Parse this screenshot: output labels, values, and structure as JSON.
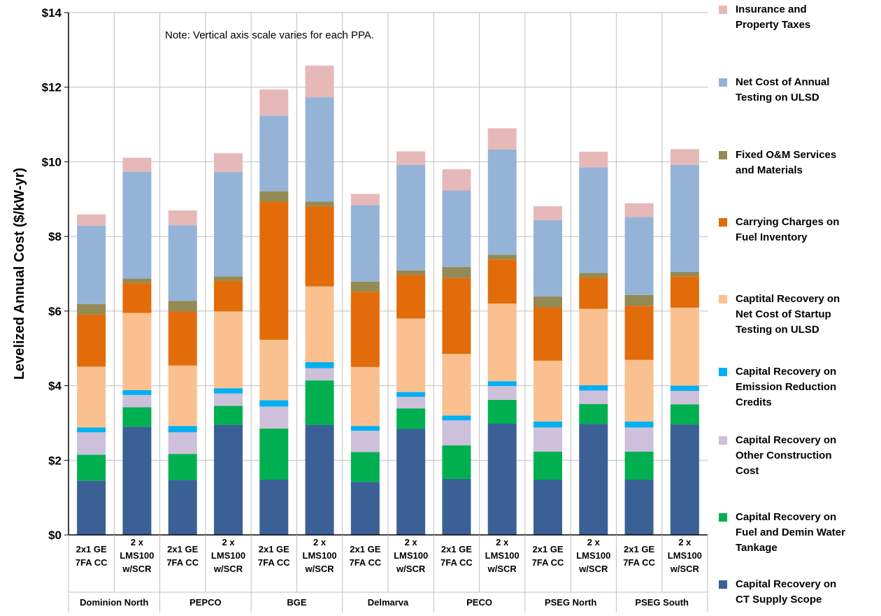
{
  "chart_data": {
    "type": "bar",
    "stacked": true,
    "note": "Note:  Vertical axis scale varies for each PPA.",
    "ylabel": "Levelized Annual Cost ($/kW-yr)",
    "xlabel": "",
    "ylim": [
      0,
      14
    ],
    "yticks": [
      0,
      2,
      4,
      6,
      8,
      10,
      12,
      14
    ],
    "ytick_labels": [
      "$0",
      "$2",
      "$4",
      "$6",
      "$8",
      "$10",
      "$12",
      "$14"
    ],
    "grid": true,
    "legend_position": "right",
    "groups": [
      "Dominion North",
      "PEPCO",
      "BGE",
      "Delmarva",
      "PECO",
      "PSEG North",
      "PSEG South"
    ],
    "category_lines": [
      [
        "2x1 GE",
        "7FA CC"
      ],
      [
        "2 x",
        "LMS100",
        "w/SCR"
      ]
    ],
    "categories": [
      "Dominion North 2x1 GE 7FA CC",
      "Dominion North 2 x LMS100 w/SCR",
      "PEPCO 2x1 GE 7FA CC",
      "PEPCO 2 x LMS100 w/SCR",
      "BGE 2x1 GE 7FA CC",
      "BGE 2 x LMS100 w/SCR",
      "Delmarva 2x1 GE 7FA CC",
      "Delmarva 2 x LMS100 w/SCR",
      "PECO 2x1 GE 7FA CC",
      "PECO 2 x LMS100 w/SCR",
      "PSEG North 2x1 GE 7FA CC",
      "PSEG North 2 x LMS100 w/SCR",
      "PSEG South 2x1 GE 7FA CC",
      "PSEG South 2 x LMS100 w/SCR"
    ],
    "series": [
      {
        "name": "Capital Recovery on CT  Supply Scope",
        "color": "#3A6095",
        "values": [
          1.45,
          2.9,
          1.47,
          2.95,
          1.48,
          2.95,
          1.42,
          2.84,
          1.5,
          2.98,
          1.48,
          2.97,
          1.48,
          2.96
        ]
      },
      {
        "name": "Capital Recovery on Fuel and Demin Water Tankage",
        "color": "#00B050",
        "values": [
          0.7,
          0.52,
          0.7,
          0.51,
          1.37,
          1.19,
          0.8,
          0.55,
          0.9,
          0.64,
          0.75,
          0.54,
          0.75,
          0.54
        ]
      },
      {
        "name": "Capital Recovery on Other Construction Cost",
        "color": "#CCC0DA",
        "values": [
          0.6,
          0.33,
          0.58,
          0.33,
          0.59,
          0.33,
          0.57,
          0.31,
          0.67,
          0.37,
          0.65,
          0.36,
          0.65,
          0.36
        ]
      },
      {
        "name": "Capital Recovery on Emission Reduction Credits",
        "color": "#00B0F0",
        "values": [
          0.13,
          0.13,
          0.17,
          0.14,
          0.17,
          0.16,
          0.13,
          0.13,
          0.13,
          0.13,
          0.16,
          0.14,
          0.16,
          0.14
        ]
      },
      {
        "name": "Captital Recovery on Net Cost of Startup Testing on ULSD",
        "color": "#FAC090",
        "values": [
          1.63,
          2.07,
          1.62,
          2.06,
          1.62,
          2.03,
          1.58,
          1.97,
          1.65,
          2.08,
          1.63,
          2.05,
          1.65,
          2.09
        ]
      },
      {
        "name": "Carrying Charges on Fuel Inventory",
        "color": "#E36C0A",
        "values": [
          1.4,
          0.8,
          1.45,
          0.82,
          3.7,
          2.15,
          2.02,
          1.17,
          2.03,
          1.18,
          1.43,
          0.84,
          1.45,
          0.84
        ]
      },
      {
        "name": "Fixed O&M Services and Materials",
        "color": "#948A54",
        "values": [
          0.28,
          0.12,
          0.28,
          0.12,
          0.28,
          0.12,
          0.27,
          0.12,
          0.3,
          0.13,
          0.29,
          0.12,
          0.29,
          0.12
        ]
      },
      {
        "name": "Net Cost of Annual Testing on ULSD",
        "color": "#95B3D7",
        "values": [
          2.1,
          2.87,
          2.03,
          2.8,
          2.03,
          2.8,
          2.05,
          2.83,
          2.05,
          2.82,
          2.05,
          2.83,
          2.09,
          2.87
        ]
      },
      {
        "name": "Insurance and Property Taxes",
        "color": "#E6B9B8",
        "values": [
          0.3,
          0.37,
          0.4,
          0.5,
          0.7,
          0.85,
          0.3,
          0.36,
          0.57,
          0.57,
          0.37,
          0.42,
          0.37,
          0.42
        ]
      }
    ],
    "legend_lines": [
      [
        "Insurance and",
        "Property Taxes"
      ],
      [
        "Net Cost of Annual",
        "Testing on ULSD"
      ],
      [
        "Fixed O&M Services",
        "and Materials"
      ],
      [
        "Carrying Charges on",
        "Fuel Inventory"
      ],
      [
        "Captital Recovery on",
        "Net Cost of Startup",
        "Testing on ULSD"
      ],
      [
        "Capital Recovery on",
        "Emission Reduction",
        "Credits"
      ],
      [
        "Capital Recovery on",
        "Other Construction",
        "Cost"
      ],
      [
        "Capital Recovery on",
        "Fuel and Demin Water",
        "Tankage"
      ],
      [
        "Capital Recovery on",
        "CT  Supply Scope"
      ]
    ]
  }
}
